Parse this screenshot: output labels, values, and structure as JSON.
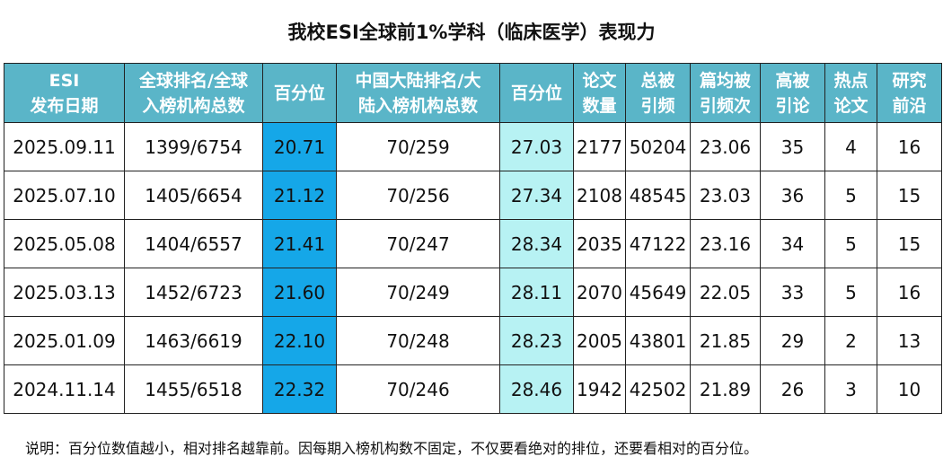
{
  "title": "我校ESI全球前1%学科（临床医学）表现力",
  "header": {
    "date": [
      "ESI",
      "发布日期"
    ],
    "global_rank": [
      "全球排名/全球",
      "入榜机构总数"
    ],
    "global_pct": [
      "百分位"
    ],
    "cn_rank": [
      "中国大陆排名/大",
      "陆入榜机构总数"
    ],
    "cn_pct": [
      "百分位"
    ],
    "papers": [
      "论文",
      "数量"
    ],
    "citations": [
      "总被",
      "引频"
    ],
    "avg_citations": [
      "篇均被",
      "引频次"
    ],
    "highly_cited": [
      "高被",
      "引论"
    ],
    "hot_papers": [
      "热点",
      "论文"
    ],
    "fronts": [
      "研究",
      "前沿"
    ]
  },
  "rows": [
    {
      "date": "2025.09.11",
      "global_rank": "1399/6754",
      "global_pct": "20.71",
      "cn_rank": "70/259",
      "cn_pct": "27.03",
      "papers": "2177",
      "citations": "50204",
      "avg_citations": "23.06",
      "highly_cited": "35",
      "hot_papers": "4",
      "fronts": "16"
    },
    {
      "date": "2025.07.10",
      "global_rank": "1405/6654",
      "global_pct": "21.12",
      "cn_rank": "70/256",
      "cn_pct": "27.34",
      "papers": "2108",
      "citations": "48545",
      "avg_citations": "23.03",
      "highly_cited": "36",
      "hot_papers": "5",
      "fronts": "15"
    },
    {
      "date": "2025.05.08",
      "global_rank": "1404/6557",
      "global_pct": "21.41",
      "cn_rank": "70/247",
      "cn_pct": "28.34",
      "papers": "2035",
      "citations": "47122",
      "avg_citations": "23.16",
      "highly_cited": "34",
      "hot_papers": "5",
      "fronts": "15"
    },
    {
      "date": "2025.03.13",
      "global_rank": "1452/6723",
      "global_pct": "21.60",
      "cn_rank": "70/249",
      "cn_pct": "28.11",
      "papers": "2070",
      "citations": "45649",
      "avg_citations": "22.05",
      "highly_cited": "33",
      "hot_papers": "5",
      "fronts": "16"
    },
    {
      "date": "2025.01.09",
      "global_rank": "1463/6619",
      "global_pct": "22.10",
      "cn_rank": "70/248",
      "cn_pct": "28.23",
      "papers": "2005",
      "citations": "43801",
      "avg_citations": "21.85",
      "highly_cited": "29",
      "hot_papers": "2",
      "fronts": "13"
    },
    {
      "date": "2024.11.14",
      "global_rank": "1455/6518",
      "global_pct": "22.32",
      "cn_rank": "70/246",
      "cn_pct": "28.46",
      "papers": "1942",
      "citations": "42502",
      "avg_citations": "21.89",
      "highly_cited": "26",
      "hot_papers": "3",
      "fronts": "10"
    }
  ],
  "footnote": "说明：百分位数值越小，相对排名越靠前。因每期入榜机构数不固定，不仅要看绝对的排位，还要看相对的百分位。",
  "colors": {
    "header_bg": "#5ab5c8",
    "global_pct_bg": "#15a7e8",
    "cn_pct_bg": "#b7f2f3"
  }
}
